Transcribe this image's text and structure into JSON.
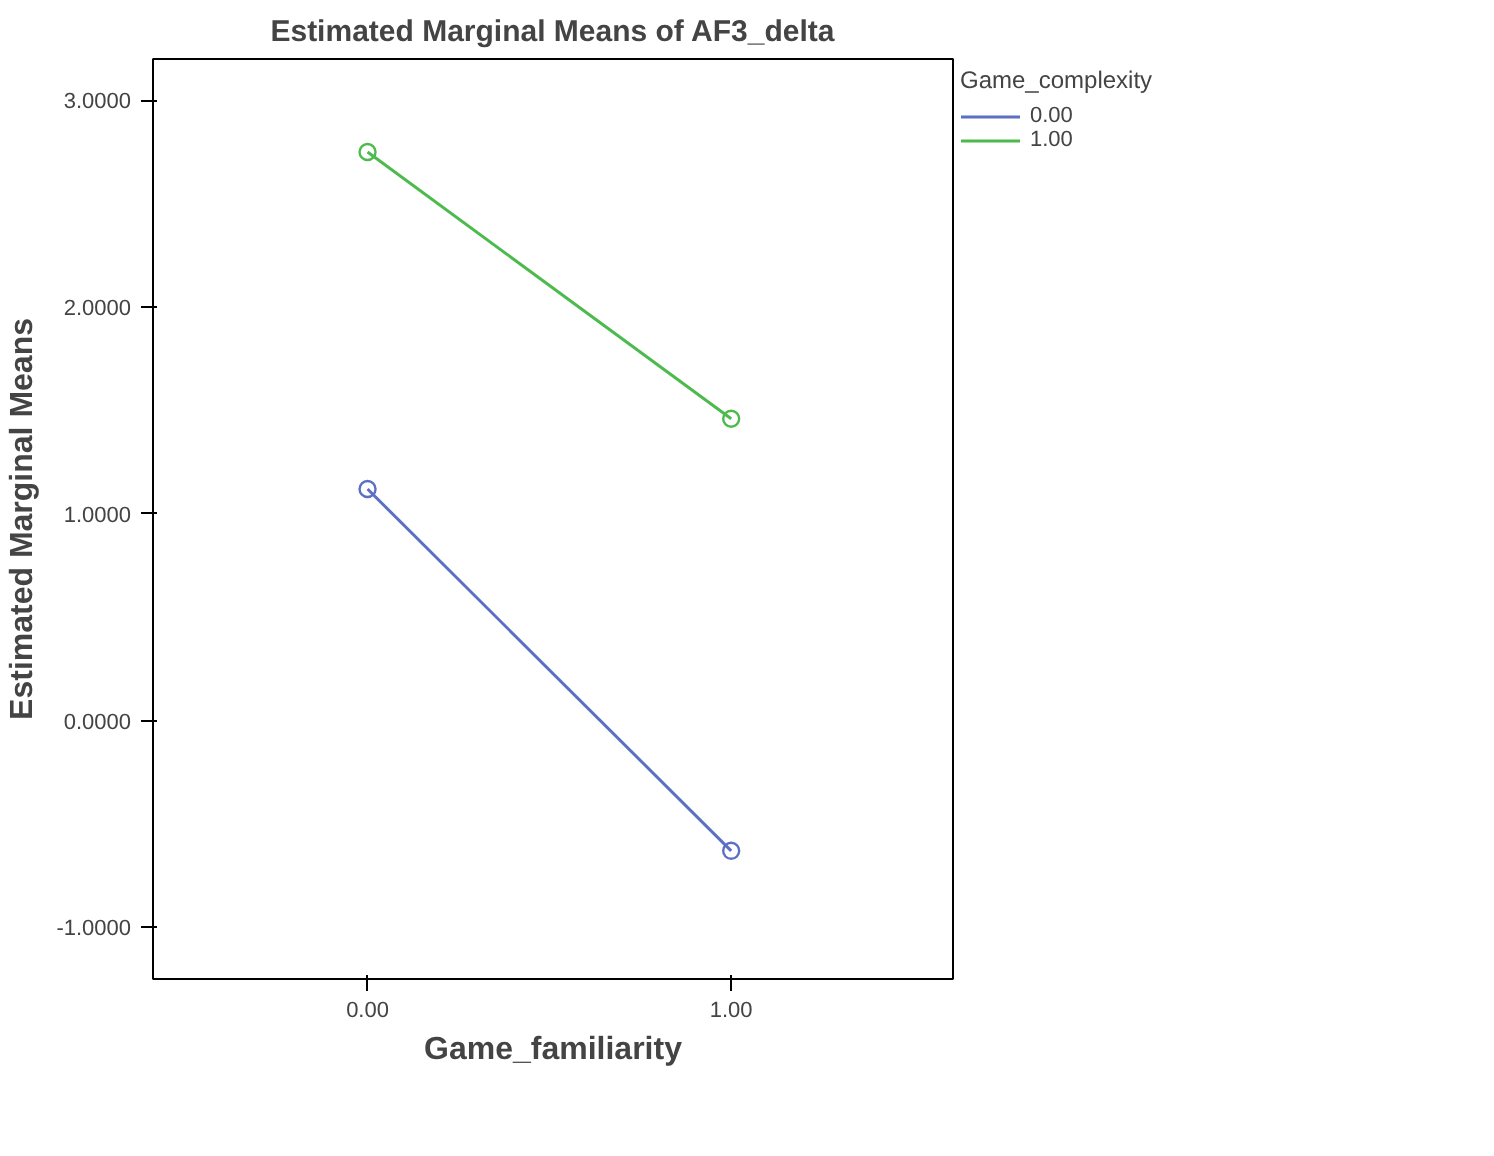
{
  "chart_data": {
    "type": "line",
    "title": "Estimated Marginal Means of AF3_delta",
    "xlabel": "Game_familiarity",
    "ylabel": "Estimated Marginal Means",
    "legend_title": "Game_complexity",
    "categories": [
      "0.00",
      "1.00"
    ],
    "series": [
      {
        "name": "0.00",
        "color": "#5b6fc4",
        "values": [
          1.12,
          -0.63
        ]
      },
      {
        "name": "1.00",
        "color": "#4dba4d",
        "values": [
          2.75,
          1.46
        ]
      }
    ],
    "ylim": [
      -1.25,
      3.2
    ],
    "yticks": [
      {
        "value": -1,
        "label": "-1.0000"
      },
      {
        "value": 0,
        "label": "0.0000"
      },
      {
        "value": 1,
        "label": "1.0000"
      },
      {
        "value": 2,
        "label": "2.0000"
      },
      {
        "value": 3,
        "label": "3.0000"
      }
    ],
    "grid": false,
    "legend": "top right",
    "marker": "circle",
    "line_style": "solid"
  }
}
